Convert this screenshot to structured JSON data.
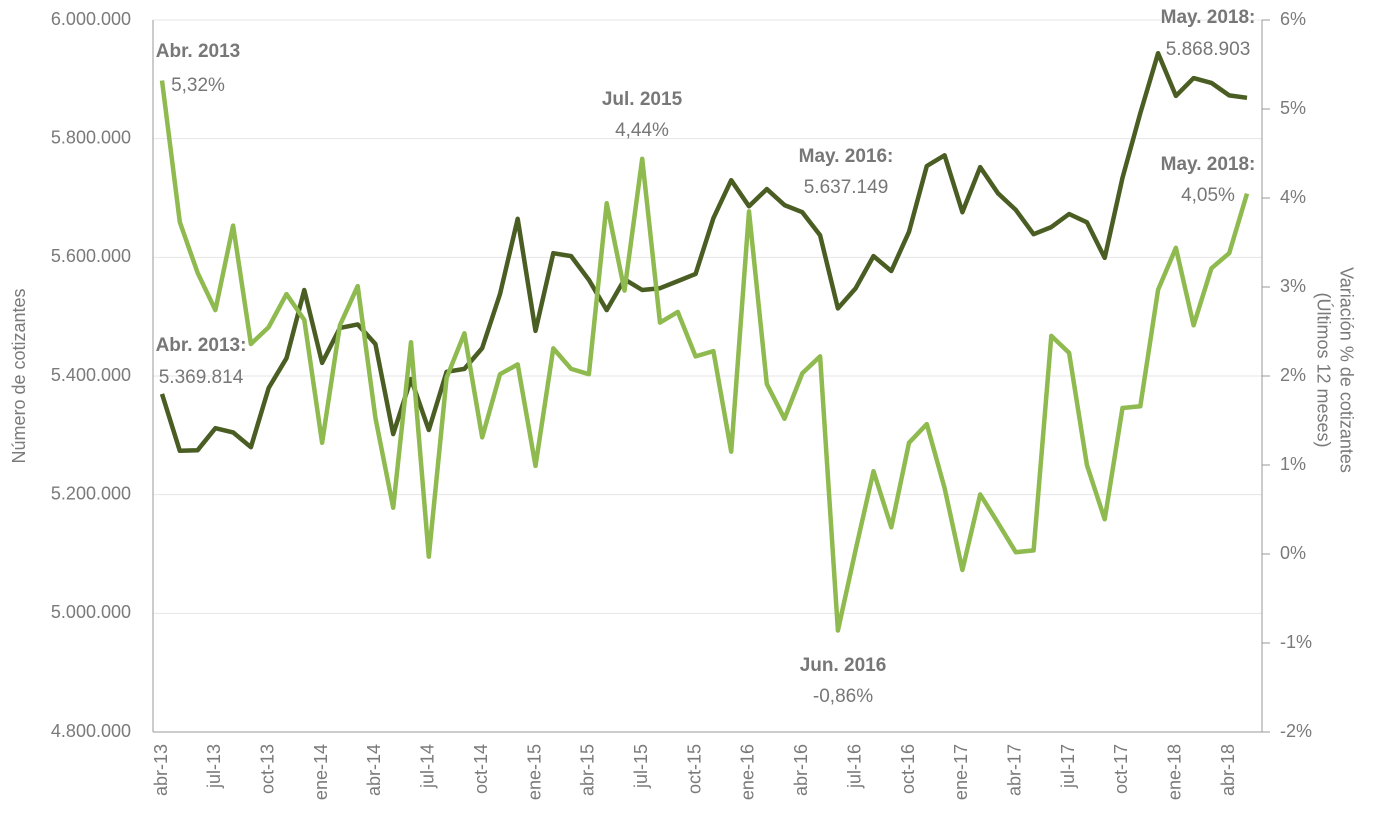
{
  "chart_data": {
    "type": "line",
    "ylabel": "Número de cotizantes",
    "y2label": [
      "Variación % de cotizantes",
      "(Últimos 12 meses)"
    ],
    "categories": [
      "abr-13",
      null,
      null,
      "jul-13",
      null,
      null,
      "oct-13",
      null,
      null,
      "ene-14",
      null,
      null,
      "abr-14",
      null,
      null,
      "jul-14",
      null,
      null,
      "oct-14",
      null,
      null,
      "ene-15",
      null,
      null,
      "abr-15",
      null,
      null,
      "jul-15",
      null,
      null,
      "oct-15",
      null,
      null,
      "ene-16",
      null,
      null,
      "abr-16",
      null,
      null,
      "jul-16",
      null,
      null,
      "oct-16",
      null,
      null,
      "ene-17",
      null,
      null,
      "abr-17",
      null,
      null,
      "jul-17",
      null,
      null,
      "oct-17",
      null,
      null,
      "ene-18",
      null,
      null,
      "abr-18",
      null
    ],
    "series": [
      {
        "name": "Número de cotizantes",
        "color": "#4a5e23",
        "axis": "y",
        "values": [
          5369814,
          5274000,
          5275000,
          5312000,
          5305000,
          5280000,
          5380000,
          5430000,
          5545000,
          5422000,
          5481000,
          5487000,
          5454000,
          5302000,
          5395000,
          5309000,
          5407000,
          5412000,
          5447000,
          5538000,
          5665000,
          5476000,
          5607000,
          5602000,
          5562000,
          5511000,
          5563000,
          5545000,
          5548000,
          5560000,
          5572000,
          5666000,
          5730000,
          5686000,
          5715000,
          5688000,
          5676000,
          5637149,
          5514000,
          5548000,
          5602000,
          5577000,
          5643000,
          5754000,
          5772000,
          5676000,
          5752000,
          5708000,
          5680000,
          5639000,
          5651000,
          5673000,
          5659000,
          5599000,
          5734000,
          5843000,
          5944000,
          5872000,
          5902000,
          5894000,
          5873000,
          5868903
        ]
      },
      {
        "name": "Variación % de cotizantes",
        "color": "#8fba4f",
        "axis": "y2",
        "values": [
          5.32,
          3.73,
          3.16,
          2.74,
          3.69,
          2.36,
          2.55,
          2.92,
          2.63,
          1.25,
          2.57,
          3.01,
          1.53,
          0.52,
          2.38,
          -0.03,
          1.98,
          2.48,
          1.31,
          2.02,
          2.13,
          0.99,
          2.31,
          2.08,
          2.02,
          3.94,
          2.96,
          4.44,
          2.6,
          2.72,
          2.22,
          2.28,
          1.15,
          3.85,
          1.91,
          1.52,
          2.03,
          2.22,
          -0.86,
          0.05,
          0.93,
          0.3,
          1.25,
          1.46,
          0.74,
          -0.18,
          0.67,
          0.35,
          0.02,
          0.04,
          2.45,
          2.26,
          1.0,
          0.39,
          1.64,
          1.66,
          2.97,
          3.44,
          2.57,
          3.21,
          3.38,
          4.05
        ]
      }
    ],
    "annotations": [
      {
        "title": "Abr. 2013",
        "label": "5,32%"
      },
      {
        "title": "Abr. 2013:",
        "label": "5.369.814"
      },
      {
        "title": "Jul. 2015",
        "label": "4,44%"
      },
      {
        "title": "May. 2016:",
        "label": "5.637.149"
      },
      {
        "title": "Jun. 2016",
        "label": "-0,86%"
      },
      {
        "title": "May. 2018:",
        "label": "5.868.903"
      },
      {
        "title": "May. 2018:",
        "label": "4,05%"
      }
    ],
    "ylim": [
      4800000,
      6000000
    ],
    "yticks": [
      {
        "value": 4800000,
        "label": "4.800.000"
      },
      {
        "value": 5000000,
        "label": "5.000.000"
      },
      {
        "value": 5200000,
        "label": "5.200.000"
      },
      {
        "value": 5400000,
        "label": "5.400.000"
      },
      {
        "value": 5600000,
        "label": "5.600.000"
      },
      {
        "value": 5800000,
        "label": "5.800.000"
      },
      {
        "value": 6000000,
        "label": "6.000.000"
      }
    ],
    "y2lim": [
      -2,
      6
    ],
    "y2ticks": [
      {
        "value": -2,
        "label": "-2%"
      },
      {
        "value": -1,
        "label": "-1%"
      },
      {
        "value": 0,
        "label": "0%"
      },
      {
        "value": 1,
        "label": "1%"
      },
      {
        "value": 2,
        "label": "2%"
      },
      {
        "value": 3,
        "label": "3%"
      },
      {
        "value": 4,
        "label": "4%"
      },
      {
        "value": 5,
        "label": "5%"
      },
      {
        "value": 6,
        "label": "6%"
      }
    ],
    "grid": true
  }
}
